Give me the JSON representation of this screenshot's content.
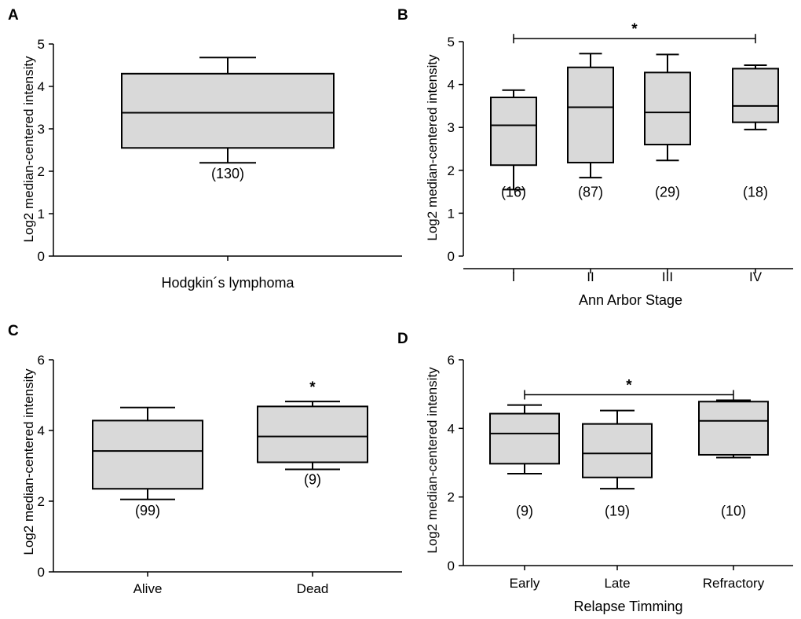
{
  "chart_data": [
    {
      "panel": "A",
      "type": "box",
      "xlabel": "Hodgkin´s lymphoma",
      "ylabel": "Log2 median-centered intensity",
      "ylim": [
        0,
        5
      ],
      "yticks": [
        "0",
        "1",
        "2",
        "3",
        "4",
        "5"
      ],
      "categories": [
        ""
      ],
      "boxes": [
        {
          "category": "",
          "min": 2.2,
          "q1": 2.55,
          "median": 3.38,
          "q3": 4.3,
          "max": 4.68,
          "n_label": "(130)"
        }
      ],
      "significance": []
    },
    {
      "panel": "B",
      "type": "box",
      "xlabel": "Ann Arbor Stage",
      "ylabel": "Log2 median-centered intensity",
      "ylim": [
        0,
        5
      ],
      "yticks": [
        "0",
        "1",
        "2",
        "3",
        "4",
        "5"
      ],
      "categories": [
        "I",
        "II",
        "III",
        "IV"
      ],
      "boxes": [
        {
          "category": "I",
          "min": 1.55,
          "q1": 2.12,
          "median": 3.05,
          "q3": 3.7,
          "max": 3.87,
          "n_label": "(16)"
        },
        {
          "category": "II",
          "min": 1.83,
          "q1": 2.18,
          "median": 3.47,
          "q3": 4.4,
          "max": 4.72,
          "n_label": "(87)"
        },
        {
          "category": "III",
          "min": 2.23,
          "q1": 2.6,
          "median": 3.35,
          "q3": 4.28,
          "max": 4.7,
          "n_label": "(29)"
        },
        {
          "category": "IV",
          "min": 2.95,
          "q1": 3.12,
          "median": 3.5,
          "q3": 4.37,
          "max": 4.45,
          "n_label": "(18)"
        }
      ],
      "significance": [
        {
          "from": "I",
          "to": "IV",
          "symbol": "*",
          "level": 5.07
        }
      ]
    },
    {
      "panel": "C",
      "type": "box",
      "xlabel": "",
      "ylabel": "Log2 median-centered intensity",
      "ylim": [
        0,
        6
      ],
      "yticks": [
        "0",
        "2",
        "4",
        "6"
      ],
      "categories": [
        "Alive",
        "Dead"
      ],
      "boxes": [
        {
          "category": "Alive",
          "min": 2.05,
          "q1": 2.35,
          "median": 3.42,
          "q3": 4.28,
          "max": 4.65,
          "n_label": "(99)"
        },
        {
          "category": "Dead",
          "min": 2.9,
          "q1": 3.1,
          "median": 3.83,
          "q3": 4.68,
          "max": 4.82,
          "n_label": "(9)"
        }
      ],
      "significance": [
        {
          "category": "Dead",
          "symbol": "*"
        }
      ]
    },
    {
      "panel": "D",
      "type": "box",
      "xlabel": "Relapse Timming",
      "ylabel": "Log2 median-centered intensity",
      "ylim": [
        0,
        6
      ],
      "yticks": [
        "0",
        "2",
        "4",
        "6"
      ],
      "categories": [
        "Early",
        "Late",
        "Refractory"
      ],
      "boxes": [
        {
          "category": "Early",
          "min": 2.68,
          "q1": 2.97,
          "median": 3.85,
          "q3": 4.43,
          "max": 4.68,
          "n_label": "(9)"
        },
        {
          "category": "Late",
          "min": 2.24,
          "q1": 2.57,
          "median": 3.27,
          "q3": 4.13,
          "max": 4.52,
          "n_label": "(19)"
        },
        {
          "category": "Refractory",
          "min": 3.15,
          "q1": 3.23,
          "median": 4.22,
          "q3": 4.78,
          "max": 4.82,
          "n_label": "(10)"
        }
      ],
      "significance": [
        {
          "from": "Early",
          "to": "Refractory",
          "symbol": "*",
          "level": 4.98
        }
      ]
    }
  ]
}
